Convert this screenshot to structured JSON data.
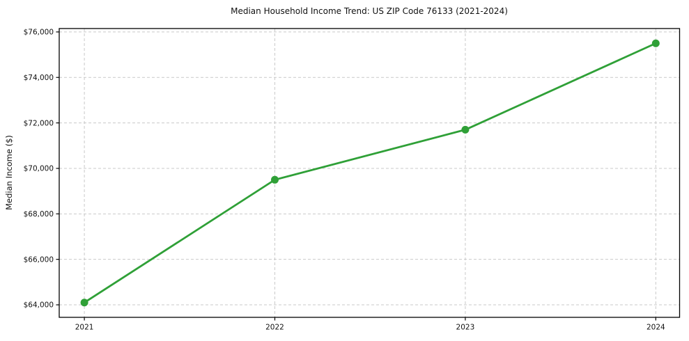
{
  "chart_data": {
    "type": "line",
    "title": "Median Household Income Trend: US ZIP Code 76133 (2021-2024)",
    "xlabel": "",
    "ylabel": "Median Income ($)",
    "x": [
      2021,
      2022,
      2023,
      2024
    ],
    "series": [
      {
        "name": "Median Household Income",
        "values": [
          64100,
          69500,
          71700,
          75500
        ]
      }
    ],
    "xticks": [
      2021,
      2022,
      2023,
      2024
    ],
    "xtick_labels": [
      "2021",
      "2022",
      "2023",
      "2024"
    ],
    "yticks": [
      64000,
      66000,
      68000,
      70000,
      72000,
      74000,
      76000
    ],
    "ytick_labels": [
      "$64,000",
      "$66,000",
      "$68,000",
      "$70,000",
      "$72,000",
      "$74,000",
      "$76,000"
    ],
    "xlim": [
      2020.868,
      2024.125
    ],
    "ylim": [
      63450,
      76150
    ],
    "grid": true,
    "grid_style": "dashed",
    "legend": "none",
    "colors": {
      "line": "#2fa037",
      "marker": "#2fa037",
      "grid": "#c9c9c9",
      "axis": "#000000",
      "text": "#111111",
      "background": "#ffffff"
    }
  }
}
